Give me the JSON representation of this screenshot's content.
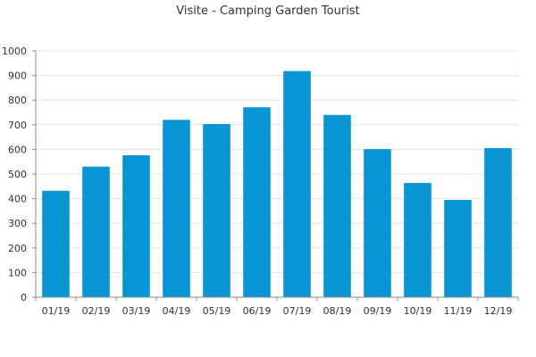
{
  "chart_data": {
    "type": "bar",
    "title": "Visite - Camping Garden Tourist",
    "xlabel": "",
    "ylabel": "",
    "categories": [
      "01/19",
      "02/19",
      "03/19",
      "04/19",
      "05/19",
      "06/19",
      "07/19",
      "08/19",
      "09/19",
      "10/19",
      "11/19",
      "12/19"
    ],
    "values": [
      432,
      530,
      576,
      720,
      703,
      771,
      918,
      740,
      601,
      464,
      395,
      605
    ],
    "ylim": [
      0,
      1000
    ],
    "yticks": [
      0,
      100,
      200,
      300,
      400,
      500,
      600,
      700,
      800,
      900,
      1000
    ],
    "grid": true,
    "legend": "none",
    "bar_color": "#0895d3"
  }
}
